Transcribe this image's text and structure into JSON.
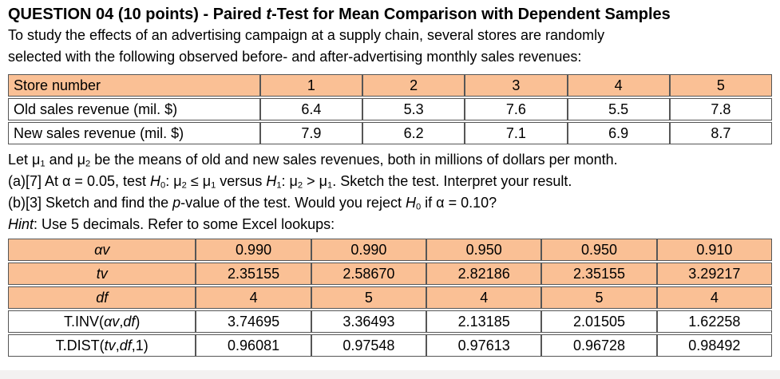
{
  "title": {
    "segments": [
      {
        "t": "QUESTION 04 (10 points) - Paired "
      },
      {
        "t": "t",
        "s": "i"
      },
      {
        "t": "-Test for Mean Comparison with Dependent Samples"
      }
    ]
  },
  "intro": {
    "lines": [
      [
        {
          "t": "To study the effects of an advertising campaign at a supply chain, several stores are randomly"
        }
      ],
      [
        {
          "t": "selected with the following observed before- and after-advertising monthly sales revenues:"
        }
      ]
    ]
  },
  "table1": {
    "header": [
      "Store number",
      "1",
      "2",
      "3",
      "4",
      "5"
    ],
    "rows": [
      [
        "Old sales revenue (mil. $)",
        "6.4",
        "5.3",
        "7.6",
        "5.5",
        "7.8"
      ],
      [
        "New sales revenue (mil. $)",
        "7.9",
        "6.2",
        "7.1",
        "6.9",
        "8.7"
      ]
    ]
  },
  "body": {
    "lines": [
      [
        {
          "t": "Let μ"
        },
        {
          "t": "1",
          "s": "sub"
        },
        {
          "t": " and μ"
        },
        {
          "t": "2",
          "s": "sub"
        },
        {
          "t": " be the means of old and new sales revenues, both in millions of dollars per month."
        }
      ],
      [
        {
          "t": "(a)[7] At α = 0.05, test "
        },
        {
          "t": "H",
          "s": "i"
        },
        {
          "t": "0",
          "s": "sub"
        },
        {
          "t": ": μ"
        },
        {
          "t": "2",
          "s": "sub"
        },
        {
          "t": " ≤ μ"
        },
        {
          "t": "1",
          "s": "sub"
        },
        {
          "t": " versus "
        },
        {
          "t": "H",
          "s": "i"
        },
        {
          "t": "1",
          "s": "sub"
        },
        {
          "t": ": μ"
        },
        {
          "t": "2",
          "s": "sub"
        },
        {
          "t": " > μ"
        },
        {
          "t": "1",
          "s": "sub"
        },
        {
          "t": ". Sketch the test. Interpret your result."
        }
      ],
      [
        {
          "t": "(b)[3] Sketch and find the "
        },
        {
          "t": "p",
          "s": "i"
        },
        {
          "t": "-value of the test. Would you reject "
        },
        {
          "t": "H",
          "s": "i"
        },
        {
          "t": "0",
          "s": "sub"
        },
        {
          "t": " if α = 0.10?"
        }
      ],
      [
        {
          "t": "Hint",
          "s": "i"
        },
        {
          "t": ": Use 5 decimals. Refer to some Excel lookups:"
        }
      ]
    ]
  },
  "table2": {
    "rows": [
      {
        "shade": true,
        "label": [
          {
            "t": "αv",
            "s": "i"
          }
        ],
        "values": [
          "0.990",
          "0.990",
          "0.950",
          "0.950",
          "0.910"
        ]
      },
      {
        "shade": true,
        "label": [
          {
            "t": "tv",
            "s": "i"
          }
        ],
        "values": [
          "2.35155",
          "2.58670",
          "2.82186",
          "2.35155",
          "3.29217"
        ]
      },
      {
        "shade": true,
        "label": [
          {
            "t": "df",
            "s": "i"
          }
        ],
        "values": [
          "4",
          "5",
          "4",
          "5",
          "4"
        ]
      },
      {
        "shade": false,
        "label": [
          {
            "t": "T.INV("
          },
          {
            "t": "αv",
            "s": "i"
          },
          {
            "t": ","
          },
          {
            "t": "df",
            "s": "i"
          },
          {
            "t": ")"
          }
        ],
        "values": [
          "3.74695",
          "3.36493",
          "2.13185",
          "2.01505",
          "1.62258"
        ]
      },
      {
        "shade": false,
        "label": [
          {
            "t": "T.DIST("
          },
          {
            "t": "tv",
            "s": "i"
          },
          {
            "t": ","
          },
          {
            "t": "df",
            "s": "i"
          },
          {
            "t": ",1)"
          }
        ],
        "values": [
          "0.96081",
          "0.97548",
          "0.97613",
          "0.96728",
          "0.98492"
        ]
      }
    ]
  },
  "colors": {
    "table_header_bg": "#FAC095",
    "table_border": "#565656",
    "page_background": "#FFFFFF",
    "bottom_strip": "#F3F1F1"
  }
}
